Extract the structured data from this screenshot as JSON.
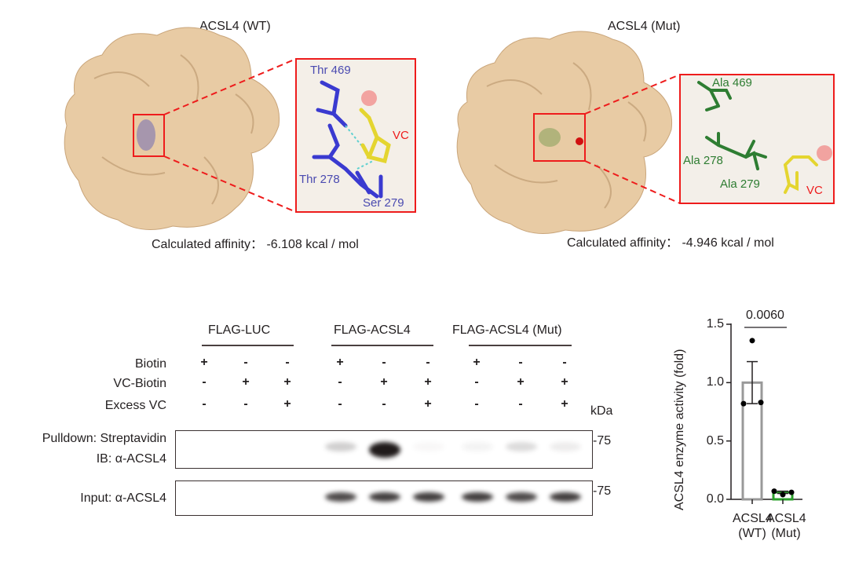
{
  "docking": {
    "wt": {
      "title": "ACSL4 (WT)",
      "residues": [
        "Thr 469",
        "Thr 278",
        "Ser 279"
      ],
      "ligand": "VC",
      "affinity": "Calculated affinity： -6.108 kcal / mol",
      "residue_color": "#3a3ad0"
    },
    "mut": {
      "title": "ACSL4 (Mut)",
      "residues": [
        "Ala 469",
        "Ala 278",
        "Ala 279"
      ],
      "ligand": "VC",
      "affinity": "Calculated affinity： -4.946 kcal / mol",
      "residue_color": "#2e7d32"
    },
    "surface_color": "#e8cba4",
    "highlight_color": "#ee1c1c"
  },
  "blot": {
    "groups": [
      "FLAG-LUC",
      "FLAG-ACSL4",
      "FLAG-ACSL4 (Mut)"
    ],
    "rows": [
      {
        "label": "Biotin",
        "signs": [
          "+",
          "-",
          "-",
          "+",
          "-",
          "-",
          "+",
          "-",
          "-"
        ]
      },
      {
        "label": "VC-Biotin",
        "signs": [
          "-",
          "+",
          "+",
          "-",
          "+",
          "+",
          "-",
          "+",
          "+"
        ]
      },
      {
        "label": "Excess VC",
        "signs": [
          "-",
          "-",
          "+",
          "-",
          "-",
          "+",
          "-",
          "-",
          "+"
        ]
      }
    ],
    "kda_label": "kDa",
    "panels": [
      {
        "label1": "Pulldown: Streptavidin",
        "label2": "IB: α-ACSL4",
        "marker": "75",
        "band_intensity": [
          0,
          0,
          0,
          0.2,
          0.95,
          0.03,
          0.05,
          0.15,
          0.08
        ]
      },
      {
        "label1": "Input: α-ACSL4",
        "label2": "",
        "marker": "75",
        "band_intensity": [
          0,
          0,
          0,
          0.75,
          0.8,
          0.8,
          0.8,
          0.75,
          0.8
        ]
      }
    ]
  },
  "chart_data": {
    "type": "bar",
    "categories": [
      "ACSL4\n(WT)",
      "ACSL4\n(Mut)"
    ],
    "category_lines": [
      [
        "ACSL4",
        "(WT)"
      ],
      [
        "ACSL4",
        "(Mut)"
      ]
    ],
    "values": [
      1.0,
      0.06
    ],
    "sem": [
      0.18,
      0.01
    ],
    "points": [
      [
        1.36,
        0.82,
        0.83
      ],
      [
        0.04,
        0.07,
        0.06
      ]
    ],
    "bar_colors": [
      "#999999",
      "#2ca02c"
    ],
    "ylabel": "ACSL4 enzyme activity (fold)",
    "ylim": [
      0,
      1.5
    ],
    "yticks": [
      "0.0",
      "0.5",
      "1.0",
      "1.5"
    ],
    "annotation": "0.0060"
  }
}
